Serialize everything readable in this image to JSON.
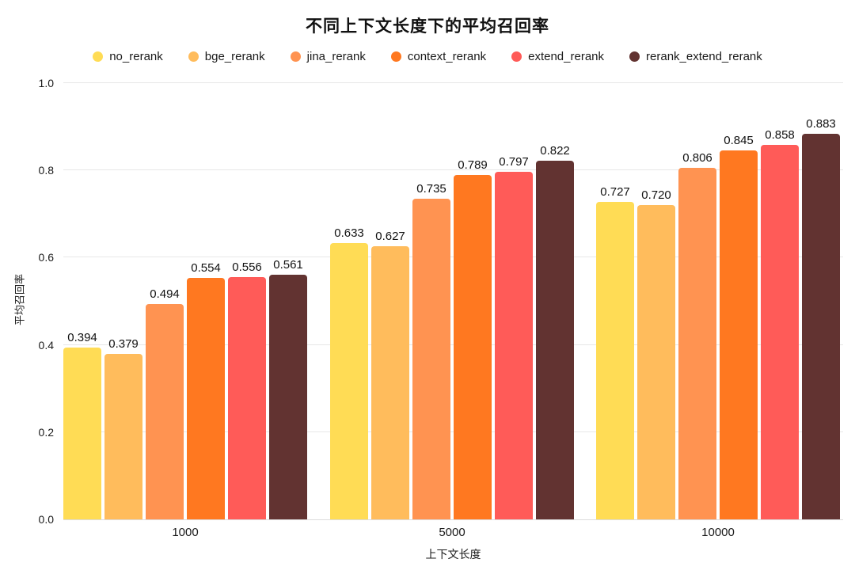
{
  "chart": {
    "title": "不同上下文长度下的平均召回率",
    "xlabel": "上下文长度",
    "ylabel": "平均召回率"
  },
  "chart_data": {
    "type": "bar",
    "title": "不同上下文长度下的平均召回率",
    "xlabel": "上下文长度",
    "ylabel": "平均召回率",
    "categories": [
      "1000",
      "5000",
      "10000"
    ],
    "series": [
      {
        "name": "no_rerank",
        "color": "#FFDC55",
        "values": [
          0.394,
          0.633,
          0.727
        ]
      },
      {
        "name": "bge_rerank",
        "color": "#FFBC5C",
        "values": [
          0.379,
          0.627,
          0.72
        ]
      },
      {
        "name": "jina_rerank",
        "color": "#FF9351",
        "values": [
          0.494,
          0.735,
          0.806
        ]
      },
      {
        "name": "context_rerank",
        "color": "#FF7820",
        "values": [
          0.554,
          0.789,
          0.845
        ]
      },
      {
        "name": "extend_rerank",
        "color": "#FF5B58",
        "values": [
          0.556,
          0.797,
          0.858
        ]
      },
      {
        "name": "rerank_extend_rerank",
        "color": "#623331",
        "values": [
          0.561,
          0.822,
          0.883
        ]
      }
    ],
    "ylim": [
      0.0,
      1.0
    ],
    "yticks": [
      0.0,
      0.2,
      0.4,
      0.6,
      0.8,
      1.0
    ],
    "grid": true,
    "legend_position": "top",
    "value_labels": true,
    "value_decimals": 3,
    "colors": {
      "gridline": "#e7e7e7",
      "text": "#1a1a1a",
      "background": "#ffffff"
    }
  }
}
